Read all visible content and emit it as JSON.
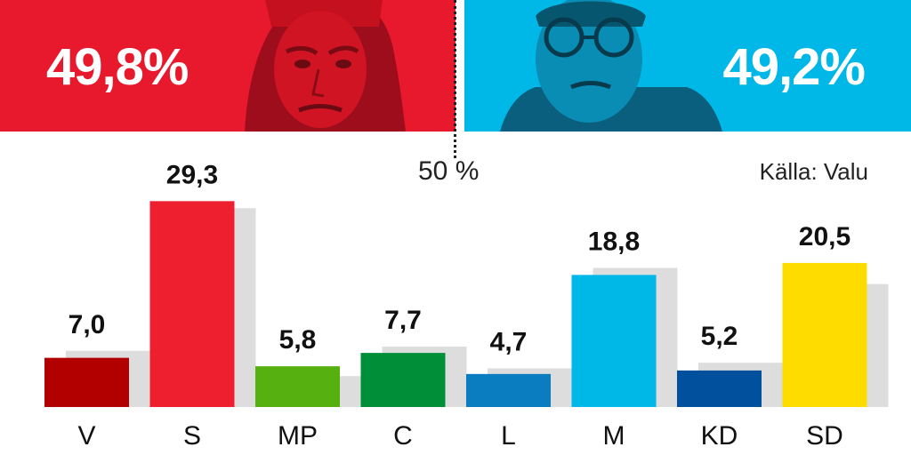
{
  "blocs": {
    "left": {
      "percent": "49,8%",
      "color": "#e8192c"
    },
    "right": {
      "percent": "49,2%",
      "color": "#00b8e8"
    }
  },
  "threshold": {
    "label": "50 %",
    "value": 50
  },
  "source": "Källa: Valu",
  "chart_data": {
    "type": "bar",
    "title": "",
    "xlabel": "",
    "ylabel": "",
    "ylim": [
      0,
      32
    ],
    "grid": false,
    "categories": [
      "V",
      "S",
      "MP",
      "C",
      "L",
      "M",
      "KD",
      "SD"
    ],
    "values": [
      7.0,
      29.3,
      5.8,
      7.7,
      4.7,
      18.8,
      5.2,
      20.5
    ],
    "value_labels": [
      "7,0",
      "29,3",
      "5,8",
      "7,7",
      "4,7",
      "18,8",
      "5,2",
      "20,5"
    ],
    "previous_values": [
      8.0,
      28.3,
      4.4,
      8.6,
      5.5,
      19.8,
      6.3,
      17.5
    ],
    "colors": [
      "#b20000",
      "#ee1f2f",
      "#56b00f",
      "#008f39",
      "#0a7dc0",
      "#00b8e8",
      "#00509e",
      "#ffdc00"
    ],
    "previous_color": "#dddddd"
  }
}
